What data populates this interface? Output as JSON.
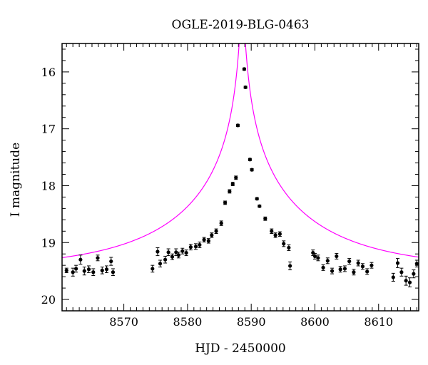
{
  "chart_data": {
    "type": "scatter",
    "title": "OGLE-2019-BLG-0463",
    "xlabel": "HJD - 2450000",
    "ylabel": "I magnitude",
    "xlim": [
      8560.3,
      8616.3
    ],
    "ylim": [
      20.2,
      15.5
    ],
    "y_inverted": true,
    "xticks": [
      8570,
      8580,
      8590,
      8600,
      8610
    ],
    "yticks": [
      16,
      17,
      18,
      19,
      20
    ],
    "grid": false,
    "model_color": "#ff00ff",
    "point_color": "#000000",
    "model": {
      "type": "point-lens microlensing fit",
      "baseline_mag": 19.47,
      "t0": 8588.6,
      "u0": 0.014,
      "tE": 22.6
    },
    "series": [
      {
        "x": [
          8561.0,
          8562.0,
          8562.5,
          8563.2,
          8563.8,
          8564.5,
          8565.2,
          8565.9,
          8566.6,
          8567.3,
          8568.0,
          8568.3,
          8574.5,
          8575.3,
          8575.7,
          8576.5,
          8577.0,
          8577.6,
          8578.2,
          8578.6,
          8579.2,
          8579.8,
          8580.5,
          8581.3,
          8581.9,
          8582.6,
          8583.3,
          8583.8,
          8584.5,
          8585.3,
          8585.9,
          8586.6,
          8587.1,
          8587.6,
          8587.9,
          8588.9,
          8589.1,
          8589.8,
          8590.1,
          8590.9,
          8591.3,
          8592.2,
          8593.2,
          8593.8,
          8594.5,
          8595.1,
          8595.9,
          8596.1,
          8599.7,
          8600.0,
          8600.5,
          8601.3,
          8602.0,
          8602.7,
          8603.4,
          8604.0,
          8604.7,
          8605.4,
          8606.1,
          8606.8,
          8607.5,
          8608.2,
          8608.9,
          8612.3,
          8613.0,
          8613.6,
          8614.3,
          8614.9,
          8615.5,
          8616.0
        ],
        "y": [
          19.49,
          19.52,
          19.46,
          19.3,
          19.5,
          19.47,
          19.52,
          19.27,
          19.49,
          19.47,
          19.33,
          19.52,
          19.46,
          19.16,
          19.37,
          19.3,
          19.17,
          19.25,
          19.17,
          19.22,
          19.15,
          19.18,
          19.08,
          19.07,
          19.04,
          18.95,
          18.97,
          18.87,
          18.8,
          18.66,
          18.3,
          18.1,
          17.97,
          17.86,
          16.94,
          15.95,
          16.27,
          17.54,
          17.72,
          18.23,
          18.36,
          18.58,
          18.8,
          18.87,
          18.85,
          19.02,
          19.09,
          19.41,
          19.18,
          19.24,
          19.27,
          19.44,
          19.32,
          19.5,
          19.24,
          19.47,
          19.46,
          19.33,
          19.52,
          19.36,
          19.42,
          19.51,
          19.4,
          19.61,
          19.36,
          19.52,
          19.67,
          19.7,
          19.55,
          19.37
        ],
        "yerr": [
          0.04,
          0.07,
          0.06,
          0.08,
          0.07,
          0.06,
          0.06,
          0.05,
          0.06,
          0.06,
          0.07,
          0.06,
          0.06,
          0.07,
          0.06,
          0.06,
          0.06,
          0.05,
          0.06,
          0.05,
          0.05,
          0.05,
          0.05,
          0.05,
          0.05,
          0.04,
          0.04,
          0.04,
          0.04,
          0.04,
          0.03,
          0.03,
          0.03,
          0.03,
          0.02,
          0.02,
          0.02,
          0.02,
          0.02,
          0.02,
          0.02,
          0.03,
          0.04,
          0.04,
          0.04,
          0.05,
          0.05,
          0.07,
          0.05,
          0.05,
          0.05,
          0.05,
          0.05,
          0.05,
          0.05,
          0.05,
          0.05,
          0.05,
          0.05,
          0.05,
          0.05,
          0.05,
          0.05,
          0.07,
          0.08,
          0.07,
          0.08,
          0.08,
          0.07,
          0.06
        ]
      }
    ]
  }
}
